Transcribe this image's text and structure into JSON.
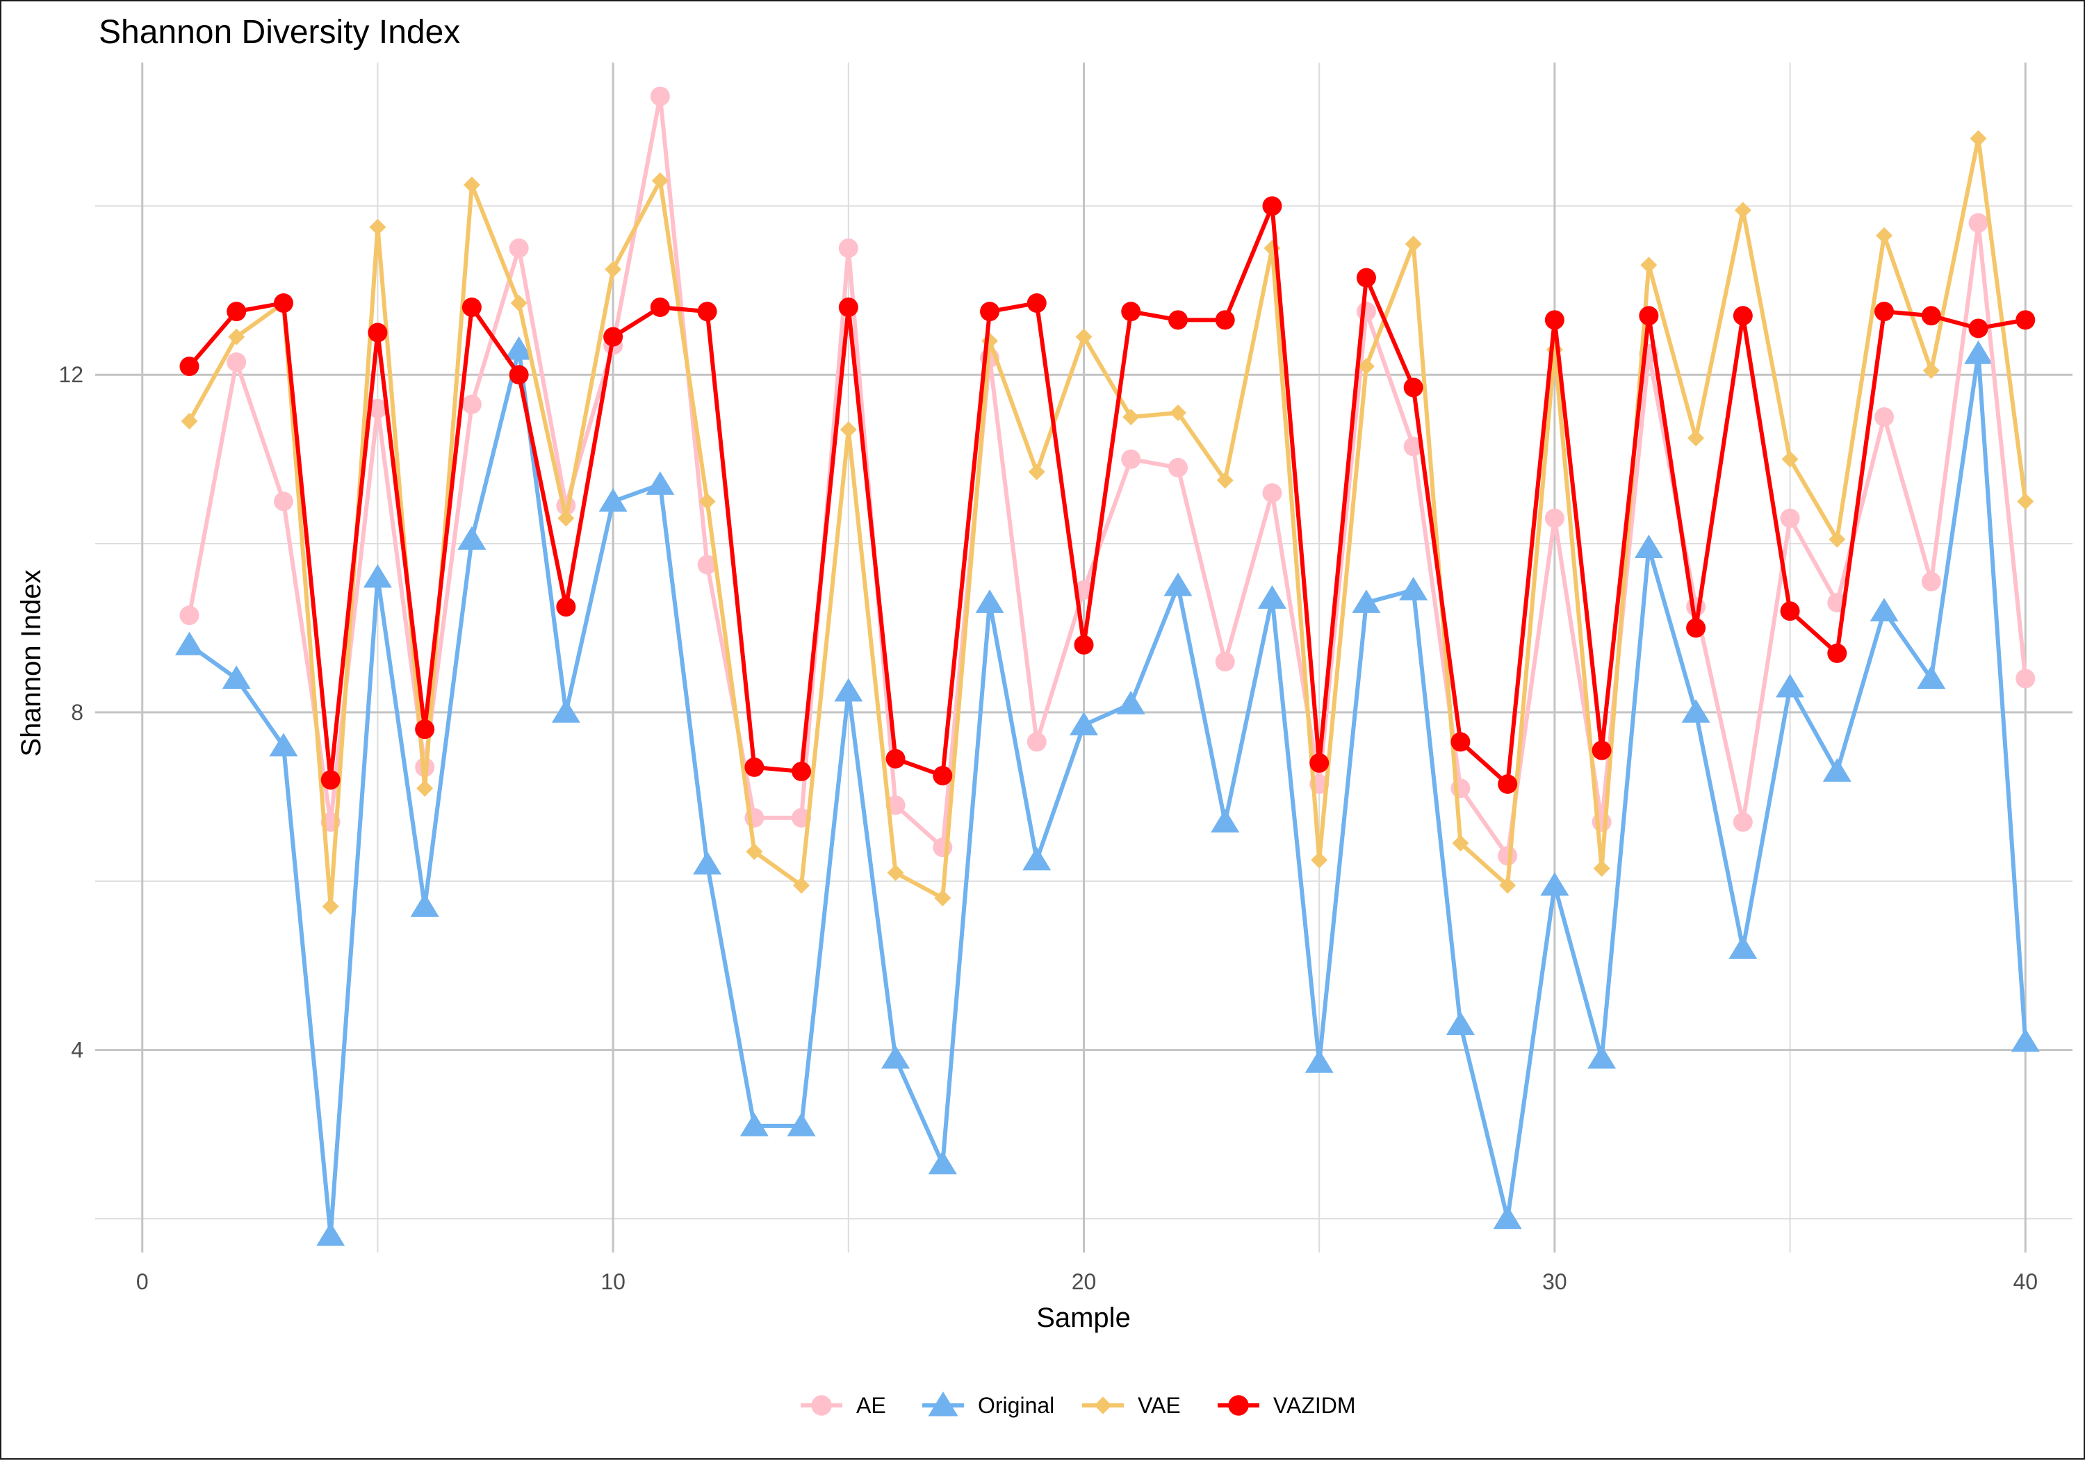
{
  "chart_data": {
    "type": "line",
    "title": "Shannon Diversity Index",
    "xlabel": "Sample",
    "ylabel": "Shannon Index",
    "xlim": [
      -1,
      41
    ],
    "ylim": [
      1.6,
      15.7
    ],
    "x_ticks": [
      0,
      10,
      20,
      30,
      40
    ],
    "x_tick_labels": [
      "0",
      "10",
      "20",
      "30",
      "40"
    ],
    "y_ticks": [
      4,
      8,
      12
    ],
    "y_tick_labels": [
      "4",
      "8",
      "12"
    ],
    "x_minor": [
      5,
      15,
      25,
      35
    ],
    "y_minor": [
      2,
      6,
      10,
      14
    ],
    "grid": true,
    "legend_position": "bottom",
    "x": [
      1,
      2,
      3,
      4,
      5,
      6,
      7,
      8,
      9,
      10,
      11,
      12,
      13,
      14,
      15,
      16,
      17,
      18,
      19,
      20,
      21,
      22,
      23,
      24,
      25,
      26,
      27,
      28,
      29,
      30,
      31,
      32,
      33,
      34,
      35,
      36,
      37,
      38,
      39,
      40
    ],
    "series": [
      {
        "name": "Original",
        "color": "#6fb2ef",
        "marker": "triangle",
        "values": [
          8.8,
          8.4,
          7.6,
          1.8,
          9.6,
          5.7,
          10.05,
          12.3,
          8.0,
          10.5,
          10.7,
          6.2,
          3.1,
          3.1,
          8.25,
          3.9,
          2.65,
          9.3,
          6.25,
          7.85,
          8.1,
          9.5,
          6.7,
          9.35,
          3.85,
          9.3,
          9.45,
          4.3,
          2.0,
          5.95,
          3.9,
          9.95,
          8.0,
          5.2,
          8.3,
          7.3,
          9.2,
          8.4,
          12.25,
          4.1
        ]
      },
      {
        "name": "AE",
        "color": "#ffc0cb",
        "marker": "circle",
        "values": [
          9.15,
          12.15,
          10.5,
          6.7,
          11.6,
          7.35,
          11.65,
          13.5,
          10.45,
          12.35,
          15.3,
          9.75,
          6.75,
          6.75,
          13.5,
          6.9,
          6.4,
          12.2,
          7.65,
          9.45,
          11.0,
          10.9,
          8.6,
          10.6,
          7.15,
          12.75,
          11.15,
          7.1,
          6.3,
          10.3,
          6.7,
          12.25,
          9.25,
          6.7,
          10.3,
          9.3,
          11.5,
          9.55,
          13.8,
          8.4
        ]
      },
      {
        "name": "VAE",
        "color": "#f5c669",
        "marker": "diamond",
        "values": [
          11.45,
          12.45,
          12.85,
          5.7,
          13.75,
          7.1,
          14.25,
          12.85,
          10.3,
          13.25,
          14.3,
          10.5,
          6.35,
          5.95,
          11.35,
          6.1,
          5.8,
          12.4,
          10.85,
          12.45,
          11.5,
          11.55,
          10.75,
          13.5,
          6.25,
          12.1,
          13.55,
          6.45,
          5.95,
          12.3,
          6.15,
          13.3,
          11.25,
          13.95,
          11.0,
          10.05,
          13.65,
          12.05,
          14.8,
          10.5
        ]
      },
      {
        "name": "VAZIDM",
        "color": "#ff0000",
        "marker": "circle",
        "values": [
          12.1,
          12.75,
          12.85,
          7.2,
          12.5,
          7.8,
          12.8,
          12.0,
          9.25,
          12.45,
          12.8,
          12.75,
          7.35,
          7.3,
          12.8,
          7.45,
          7.25,
          12.75,
          12.85,
          8.8,
          12.75,
          12.65,
          12.65,
          14.0,
          7.4,
          13.15,
          11.85,
          7.65,
          7.15,
          12.65,
          7.55,
          12.7,
          9.0,
          12.7,
          9.2,
          8.7,
          12.75,
          12.7,
          12.55,
          12.65
        ]
      }
    ]
  }
}
